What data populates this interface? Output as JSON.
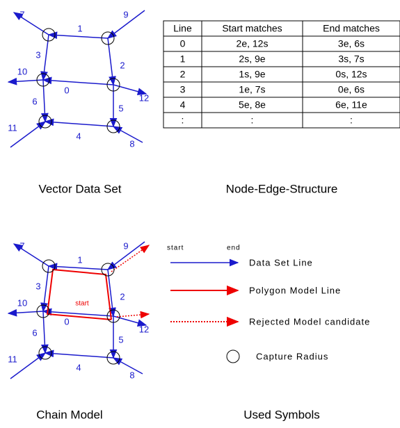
{
  "vector_data_set": {
    "edge_labels": [
      "0",
      "1",
      "2",
      "3",
      "4",
      "5",
      "6",
      "7",
      "8",
      "9",
      "10",
      "11",
      "12"
    ],
    "caption": "Vector Data Set"
  },
  "node_edge_structure": {
    "table": {
      "header": [
        "Line",
        "Start matches",
        "End matches"
      ],
      "rows": [
        [
          "0",
          "2e, 12s",
          "3e, 6s"
        ],
        [
          "1",
          "2s, 9e",
          "3s, 7s"
        ],
        [
          "2",
          "1s, 9e",
          "0s, 12s"
        ],
        [
          "3",
          "1e, 7s",
          "0e, 6s"
        ],
        [
          "4",
          "5e, 8e",
          "6e, 11e"
        ],
        [
          ":",
          ":",
          ":"
        ]
      ]
    },
    "caption": "Node-Edge-Structure"
  },
  "chain_model": {
    "edge_labels": [
      "0",
      "1",
      "2",
      "3",
      "4",
      "5",
      "6",
      "7",
      "8",
      "9",
      "10",
      "11",
      "12"
    ],
    "start_label": "start",
    "caption": "Chain Model"
  },
  "used_symbols": {
    "start": "start",
    "end": "end",
    "items": [
      "Data Set Line",
      "Polygon Model Line",
      "Rejected Model candidate",
      "Capture Radius"
    ],
    "caption": "Used Symbols"
  }
}
